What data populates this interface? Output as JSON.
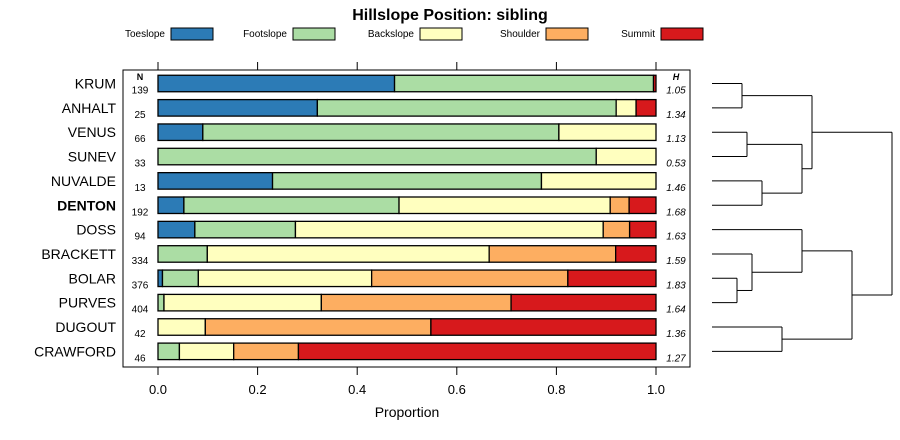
{
  "chart_data": {
    "type": "bar",
    "stacked": true,
    "orientation": "horizontal",
    "title": "Hillslope Position: sibling",
    "xlabel": "Proportion",
    "ylabel": "",
    "xlim": [
      0,
      1
    ],
    "xticks": [
      "0.0",
      "0.2",
      "0.4",
      "0.6",
      "0.8",
      "1.0"
    ],
    "legend": [
      {
        "name": "Toeslope",
        "color": "#2c7bb6"
      },
      {
        "name": "Footslope",
        "color": "#abdda4"
      },
      {
        "name": "Backslope",
        "color": "#ffffbf"
      },
      {
        "name": "Shoulder",
        "color": "#fdae61"
      },
      {
        "name": "Summit",
        "color": "#d7191c"
      }
    ],
    "n_header": "N",
    "h_header": "H",
    "categories": [
      {
        "label": "KRUM",
        "bold": false,
        "n": "139",
        "h": "1.05",
        "values": [
          0.475,
          0.52,
          0.0,
          0.0,
          0.005
        ]
      },
      {
        "label": "ANHALT",
        "bold": false,
        "n": "25",
        "h": "1.34",
        "values": [
          0.32,
          0.6,
          0.04,
          0.0,
          0.04
        ]
      },
      {
        "label": "VENUS",
        "bold": false,
        "n": "66",
        "h": "1.13",
        "values": [
          0.09,
          0.715,
          0.195,
          0.0,
          0.0
        ]
      },
      {
        "label": "SUNEV",
        "bold": false,
        "n": "33",
        "h": "0.53",
        "values": [
          0.0,
          0.88,
          0.12,
          0.0,
          0.0
        ]
      },
      {
        "label": "NUVALDE",
        "bold": false,
        "n": "13",
        "h": "1.46",
        "values": [
          0.23,
          0.54,
          0.23,
          0.0,
          0.0
        ]
      },
      {
        "label": "DENTON",
        "bold": true,
        "n": "192",
        "h": "1.68",
        "values": [
          0.052,
          0.432,
          0.424,
          0.038,
          0.054
        ]
      },
      {
        "label": "DOSS",
        "bold": false,
        "n": "94",
        "h": "1.63",
        "values": [
          0.074,
          0.202,
          0.618,
          0.053,
          0.053
        ]
      },
      {
        "label": "BRACKETT",
        "bold": false,
        "n": "334",
        "h": "1.59",
        "values": [
          0.0,
          0.099,
          0.566,
          0.254,
          0.081
        ]
      },
      {
        "label": "BOLAR",
        "bold": false,
        "n": "376",
        "h": "1.83",
        "values": [
          0.009,
          0.072,
          0.348,
          0.394,
          0.177
        ]
      },
      {
        "label": "PURVES",
        "bold": false,
        "n": "404",
        "h": "1.64",
        "values": [
          0.0,
          0.012,
          0.316,
          0.381,
          0.291
        ]
      },
      {
        "label": "DUGOUT",
        "bold": false,
        "n": "42",
        "h": "1.36",
        "values": [
          0.0,
          0.0,
          0.095,
          0.453,
          0.452
        ]
      },
      {
        "label": "CRAWFORD",
        "bold": false,
        "n": "46",
        "h": "1.27",
        "values": [
          0.0,
          0.043,
          0.109,
          0.13,
          0.718
        ]
      }
    ],
    "dendrogram": {
      "merges": [
        {
          "a": "KRUM",
          "b": "ANHALT",
          "height": 0.3
        },
        {
          "a": "VENUS",
          "b": "SUNEV",
          "height": 0.35
        },
        {
          "a": "NUVALDE",
          "b": "DENTON",
          "height": 0.5
        },
        {
          "a": "[VENUS,SUNEV]",
          "b": "[NUVALDE,DENTON]",
          "height": 0.9
        },
        {
          "a": "[KRUM,ANHALT]",
          "b": "[VENUS..DENTON]",
          "height": 1.0
        },
        {
          "a": "BOLAR",
          "b": "PURVES",
          "height": 0.25
        },
        {
          "a": "BRACKETT",
          "b": "[BOLAR,PURVES]",
          "height": 0.4
        },
        {
          "a": "DOSS",
          "b": "[BRACKETT..PURVES]",
          "height": 0.9
        },
        {
          "a": "DUGOUT",
          "b": "CRAWFORD",
          "height": 0.7
        },
        {
          "a": "[DOSS..PURVES]",
          "b": "[DUGOUT,CRAWFORD]",
          "height": 1.4
        },
        {
          "a": "[KRUM..DENTON]",
          "b": "[DOSS..CRAWFORD]",
          "height": 1.8
        }
      ]
    }
  }
}
